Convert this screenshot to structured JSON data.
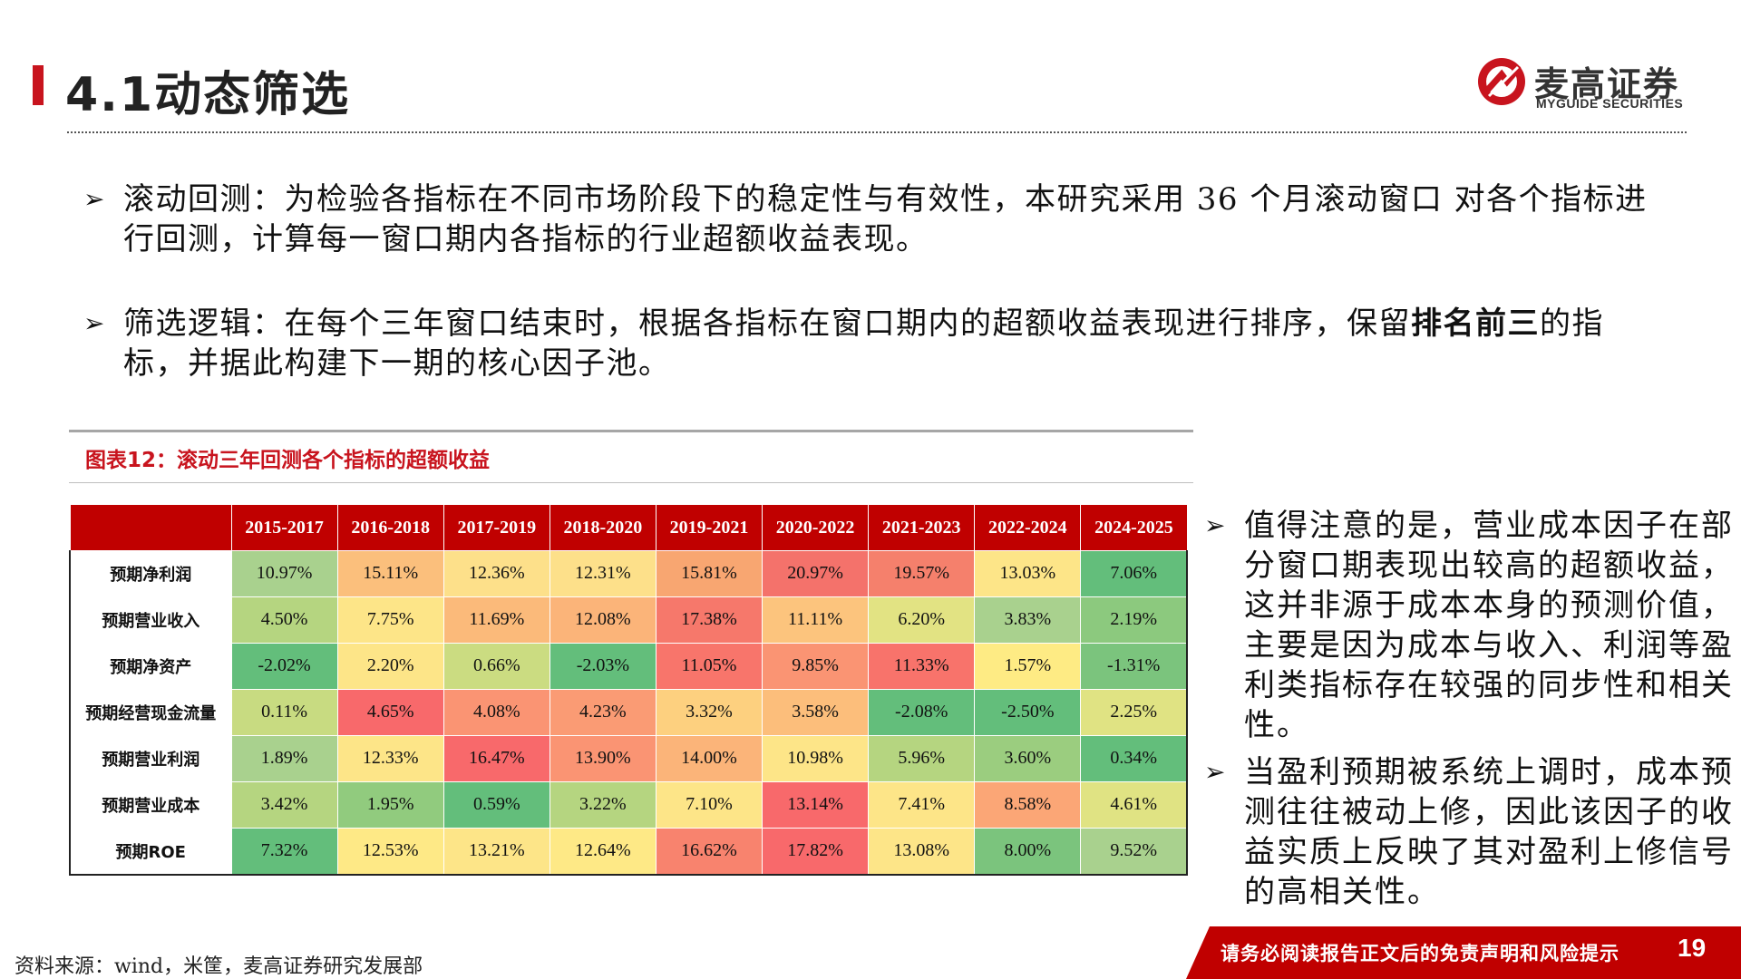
{
  "header": {
    "title": "4.1动态筛选",
    "logo_cn": "麦高证券",
    "logo_en": "MYGUIDE SECURITIES"
  },
  "bullets": [
    {
      "arrow": "➢",
      "text_parts": [
        "滚动回测：为检验各指标在不同市场阶段下的稳定性与有效性，本研究采用 36 个月滚动窗口 对各个指标进行回测，计算每一窗口期内各指标的行业超额收益表现。"
      ]
    },
    {
      "arrow": "➢",
      "text_before": "筛选逻辑：在每个三年窗口结束时，根据各指标在窗口期内的超额收益表现进行排序，保留",
      "text_bold": "排名前三",
      "text_after": "的指标，并据此构建下一期的核心因子池。"
    }
  ],
  "table": {
    "caption": "图表12：滚动三年回测各个指标的超额收益",
    "columns": [
      "2015-2017",
      "2016-2018",
      "2017-2019",
      "2018-2020",
      "2019-2021",
      "2020-2022",
      "2021-2023",
      "2022-2024",
      "2024-2025"
    ],
    "rows": [
      {
        "label": "预期净利润",
        "values": [
          "10.97%",
          "15.11%",
          "12.36%",
          "12.31%",
          "15.81%",
          "20.97%",
          "19.57%",
          "13.03%",
          "7.06%"
        ],
        "colors": [
          "#a9d18e",
          "#fbbf7c",
          "#fde08a",
          "#fde08a",
          "#f8a671",
          "#f4726b",
          "#f5806c",
          "#fde588",
          "#63be7b"
        ]
      },
      {
        "label": "预期营业收入",
        "values": [
          "4.50%",
          "7.75%",
          "11.69%",
          "12.08%",
          "17.38%",
          "11.11%",
          "6.20%",
          "3.83%",
          "2.19%"
        ],
        "colors": [
          "#b5d580",
          "#fde588",
          "#fbba7a",
          "#fbb479",
          "#f6786b",
          "#fcc47d",
          "#e2e383",
          "#a9d18e",
          "#8cc97e"
        ]
      },
      {
        "label": "预期净资产",
        "values": [
          "-2.02%",
          "2.20%",
          "0.66%",
          "-2.03%",
          "11.05%",
          "9.85%",
          "11.33%",
          "1.57%",
          "-1.31%"
        ],
        "colors": [
          "#63be7b",
          "#fde588",
          "#cbdc81",
          "#63be7b",
          "#f8756b",
          "#fa9473",
          "#f8736b",
          "#feeb84",
          "#7bc47d"
        ]
      },
      {
        "label": "预期经营现金流量",
        "values": [
          "0.11%",
          "4.65%",
          "4.08%",
          "4.23%",
          "3.32%",
          "3.58%",
          "-2.08%",
          "-2.50%",
          "2.25%"
        ],
        "colors": [
          "#c8db81",
          "#f8696b",
          "#fa9473",
          "#fa9b74",
          "#fdd07f",
          "#fcbe7b",
          "#63be7b",
          "#63be7b",
          "#e0e383"
        ]
      },
      {
        "label": "预期营业利润",
        "values": [
          "1.89%",
          "12.33%",
          "16.47%",
          "13.90%",
          "14.00%",
          "10.98%",
          "5.96%",
          "3.60%",
          "0.34%"
        ],
        "colors": [
          "#a9d18e",
          "#fde588",
          "#f8696b",
          "#fa9473",
          "#fbb479",
          "#fde588",
          "#b5d580",
          "#9bcd7f",
          "#63be7b"
        ]
      },
      {
        "label": "预期营业成本",
        "values": [
          "3.42%",
          "1.95%",
          "0.59%",
          "3.22%",
          "7.10%",
          "13.14%",
          "7.41%",
          "8.58%",
          "4.61%"
        ],
        "colors": [
          "#b5d580",
          "#91cb7e",
          "#63be7b",
          "#b5d580",
          "#fde588",
          "#f8696b",
          "#fde588",
          "#fba676",
          "#e0e383"
        ]
      },
      {
        "label": "预期ROE",
        "values": [
          "7.32%",
          "12.53%",
          "13.21%",
          "12.64%",
          "16.62%",
          "17.82%",
          "13.08%",
          "8.00%",
          "9.52%"
        ],
        "colors": [
          "#63be7b",
          "#fee986",
          "#fde588",
          "#fee986",
          "#f8836e",
          "#f8696b",
          "#fde588",
          "#7bc47d",
          "#a9d18e"
        ]
      }
    ]
  },
  "side_bullets": [
    {
      "arrow": "➢",
      "text": "值得注意的是，营业成本因子在部分窗口期表现出较高的超额收益，这并非源于成本本身的预测价值，主要是因为成本与收入、利润等盈利类指标存在较强的同步性和相关性。"
    },
    {
      "arrow": "➢",
      "text": "当盈利预期被系统上调时，成本预测往往被动上修，因此该因子的收益实质上反映了其对盈利上修信号的高相关性。"
    }
  ],
  "footer": {
    "source": "资料来源：wind，米筐，麦高证券研究发展部",
    "disclaimer": "请务必阅读报告正文后的免责声明和风险提示",
    "page": "19"
  },
  "colors": {
    "accent_red": "#c00000",
    "brand_red": "#c8141e"
  }
}
